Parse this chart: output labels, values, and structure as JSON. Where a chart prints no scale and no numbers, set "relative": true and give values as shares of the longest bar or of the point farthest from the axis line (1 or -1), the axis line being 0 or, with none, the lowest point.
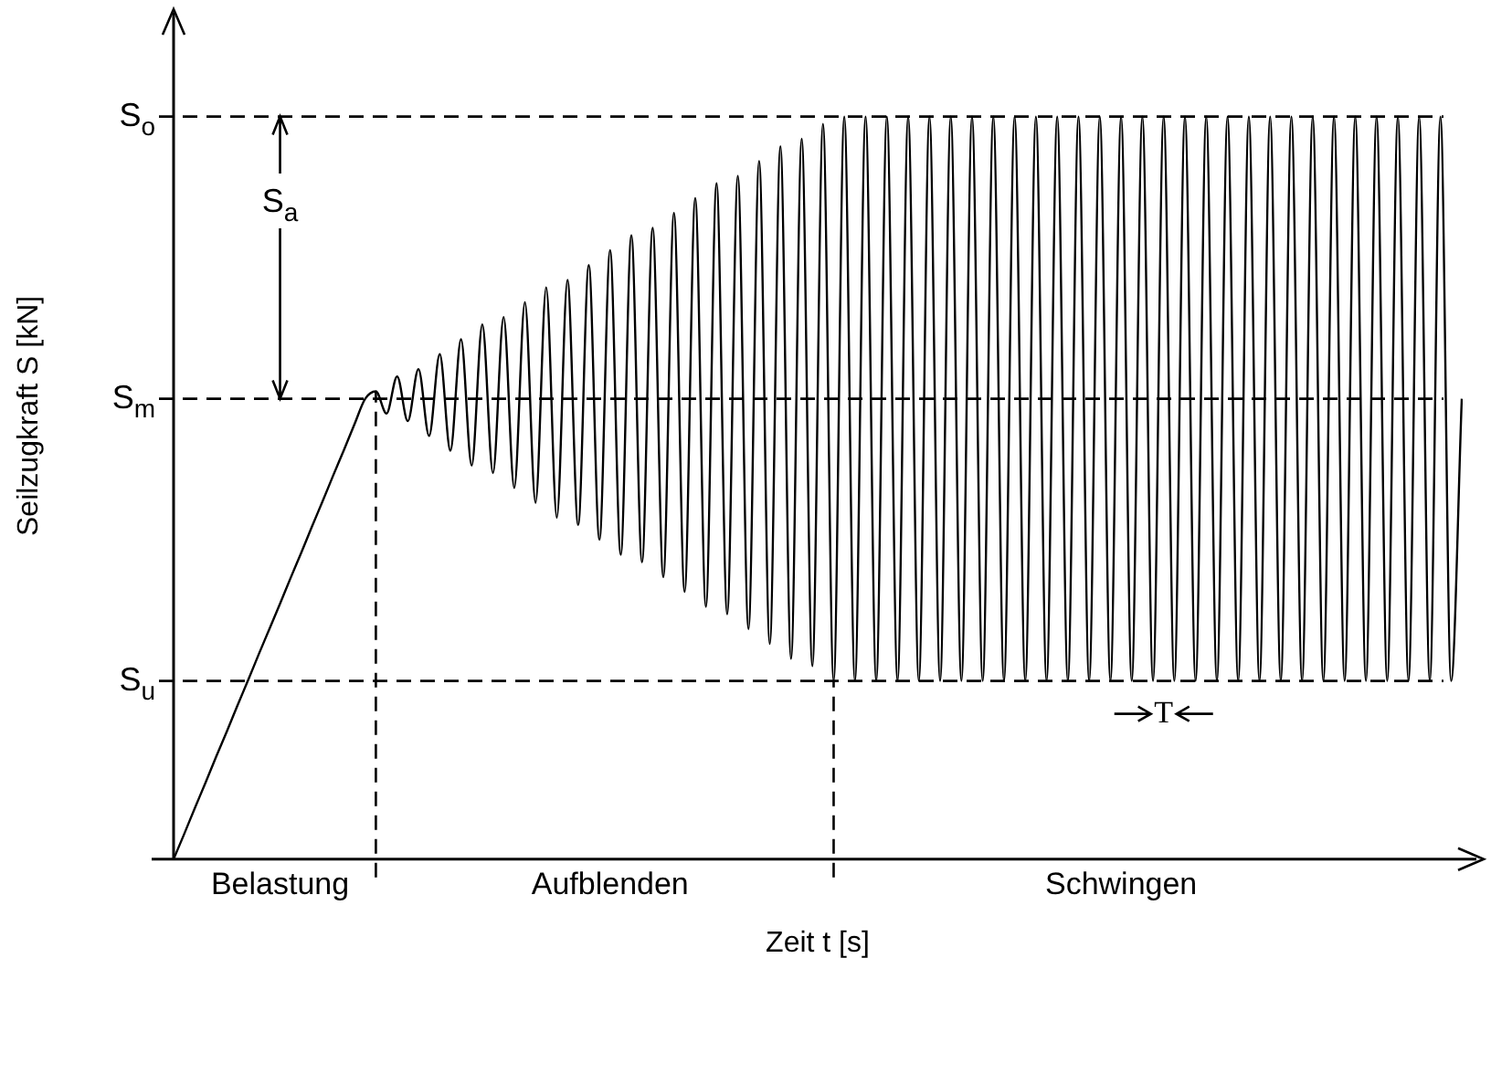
{
  "chart_data": {
    "type": "line",
    "relative": true,
    "xlabel": "Zeit t [s]",
    "ylabel": "Seilzugkraft S [kN]",
    "categories": [
      null,
      null,
      null,
      null,
      null,
      null,
      null,
      null,
      null,
      null,
      "Belastung",
      null,
      null,
      null,
      null,
      null,
      null,
      null,
      null,
      null,
      null,
      null,
      null,
      null,
      null,
      null,
      null,
      null,
      null,
      null,
      null,
      null,
      null,
      null,
      null,
      null,
      null,
      null,
      null,
      null,
      null,
      "Aufblenden",
      null,
      null,
      null,
      null,
      null,
      null,
      null,
      null,
      null,
      null,
      null,
      null,
      null,
      null,
      null,
      null,
      null,
      null,
      null,
      null,
      null,
      null,
      null,
      null,
      null,
      null,
      null,
      null,
      null,
      null,
      null,
      null,
      null,
      null,
      null,
      null,
      null,
      null,
      null,
      null,
      null,
      null,
      null,
      null,
      null,
      null,
      null,
      "Schwingen",
      null,
      null,
      null,
      null,
      null,
      null,
      null,
      null,
      null,
      null,
      null,
      null,
      null,
      null,
      null,
      null,
      null,
      null,
      null,
      null,
      null,
      null,
      null,
      null,
      null,
      null,
      null,
      null,
      null,
      null,
      null,
      null
    ],
    "series": [
      {
        "color": "#000000",
        "values": [
          0,
          0.034,
          0.069,
          0.103,
          0.138,
          0.172,
          0.207,
          0.241,
          0.276,
          0.31,
          0.344,
          0.379,
          0.413,
          0.448,
          0.482,
          0.517,
          0.551,
          0.586,
          0.62,
          0.63,
          0.6,
          0.65,
          0.59,
          0.66,
          0.57,
          0.68,
          0.55,
          0.7,
          0.53,
          0.72,
          0.52,
          0.73,
          0.5,
          0.75,
          0.48,
          0.77,
          0.46,
          0.78,
          0.45,
          0.8,
          0.43,
          0.82,
          0.41,
          0.84,
          0.4,
          0.85,
          0.38,
          0.87,
          0.36,
          0.89,
          0.34,
          0.91,
          0.33,
          0.92,
          0.31,
          0.94,
          0.29,
          0.96,
          0.27,
          0.97,
          0.26,
          0.99,
          0.24,
          1,
          0.24,
          1,
          0.24,
          1,
          0.24,
          1,
          0.24,
          1,
          0.24,
          1,
          0.24,
          1,
          0.24,
          1,
          0.24,
          1,
          0.24,
          1,
          0.24,
          1,
          0.24,
          1,
          0.24,
          1,
          0.24,
          1,
          0.24,
          1,
          0.24,
          1,
          0.24,
          1,
          0.24,
          1,
          0.24,
          1,
          0.24,
          1,
          0.24,
          1,
          0.24,
          1,
          0.24,
          1,
          0.24,
          1,
          0.24,
          1,
          0.24,
          1,
          0.24,
          1,
          0.24,
          1,
          0.24,
          1,
          0.24,
          0.62
        ]
      }
    ],
    "ref_lines": [
      {
        "axis": "y",
        "value": 1,
        "label": "S$_{o}$",
        "line_style": "dashed"
      },
      {
        "axis": "y",
        "value": 0.62,
        "label": "S$_{m}$",
        "line_style": "dashed"
      },
      {
        "axis": "y",
        "value": 0.24,
        "label": "S$_{u}$",
        "line_style": "dashed"
      }
    ],
    "annotations": [
      "S$_{a}$",
      "T"
    ],
    "marker": "none",
    "line_style": "solid"
  }
}
